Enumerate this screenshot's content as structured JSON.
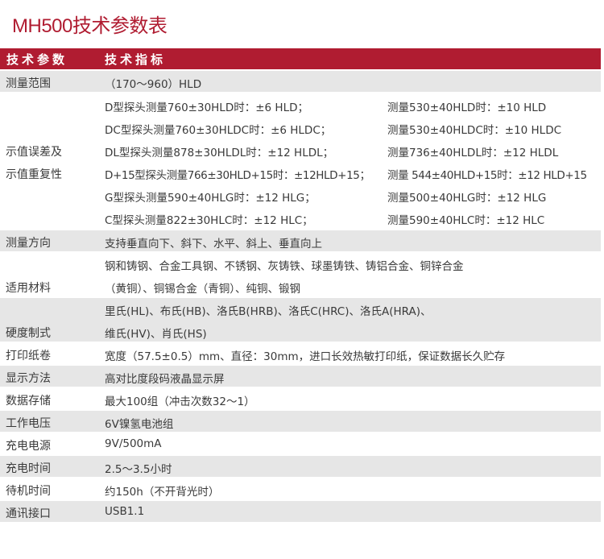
{
  "title": "MH500技术参数表",
  "header": {
    "col1": "技术参数",
    "col2": "技术指标"
  },
  "range": {
    "label": "测量范围",
    "value": "（170～960）HLD"
  },
  "error": {
    "label_line1": "示值误差及",
    "label_line2": "示值重复性",
    "rows": [
      {
        "left": "D型探头测量760±30HLD时：±6 HLD；",
        "right": "测量530±40HLD时：±10 HLD"
      },
      {
        "left": "DC型探头测量760±30HLDC时：±6 HLDC；",
        "right": "测量530±40HLDC时：±10 HLDC"
      },
      {
        "left": "DL型探头测量878±30HLDL时：±12 HLDL；",
        "right": "测量736±40HLDL时：±12 HLDL"
      },
      {
        "left": "D+15型探头测量766±30HLD+15时：±12HLD+15；",
        "right": "测量 544±40HLD+15时：±12 HLD+15"
      },
      {
        "left": "G型探头测量590±40HLG时：±12 HLG；",
        "right": "测量500±40HLG时：±12 HLG"
      },
      {
        "left": "C型探头测量822±30HLC时：±12 HLC；",
        "right": "测量590±40HLC时：±12 HLC"
      }
    ]
  },
  "direction": {
    "label": "测量方向",
    "value": "支持垂直向下、斜下、水平、斜上、垂直向上"
  },
  "materials": {
    "label": "适用材料",
    "line1": "钢和铸钢、合金工具钢、不锈钢、灰铸铁、球墨铸铁、铸铝合金、铜锌合金",
    "line2": "（黄铜）、铜锡合金（青铜）、纯铜、锻钢"
  },
  "hardness": {
    "label": "硬度制式",
    "line1": "里氏(HL)、布氏(HB)、洛氏B(HRB)、洛氏C(HRC)、洛氏A(HRA)、",
    "line2": "维氏(HV)、肖氏(HS)"
  },
  "simple": [
    {
      "label": "打印纸卷",
      "value": "宽度（57.5±0.5）mm、直径：30mm，进口长效热敏打印纸，保证数据长久贮存"
    },
    {
      "label": "显示方法",
      "value": "高对比度段码液晶显示屏"
    },
    {
      "label": "数据存储",
      "value": "最大100组（冲击次数32～1）"
    },
    {
      "label": "工作电压",
      "value": "6V镍氢电池组"
    },
    {
      "label": "充电电源",
      "value": "9V/500mA"
    },
    {
      "label": "充电时间",
      "value": "2.5～3.5小时"
    },
    {
      "label": "待机时间",
      "value": "约150h（不开背光时）"
    },
    {
      "label": "通讯接口",
      "value": "USB1.1"
    }
  ],
  "colors": {
    "accent": "#b01c31",
    "row_gray": "#e6e6e6"
  }
}
